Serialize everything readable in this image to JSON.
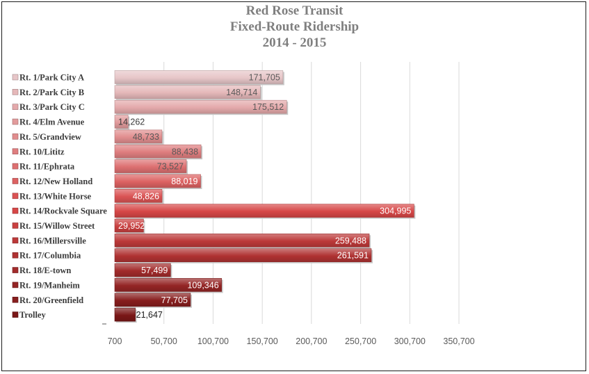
{
  "chart_data": {
    "type": "bar",
    "orientation": "horizontal",
    "title_lines": [
      "Red Rose Transit",
      "Fixed-Route Ridership",
      "2014 - 2015"
    ],
    "categories": [
      "Rt. 1/Park City A",
      "Rt. 2/Park City B",
      "Rt. 3/Park City C",
      "Rt. 4/Elm Avenue",
      "Rt. 5/Grandview",
      "Rt. 10/Lititz",
      "Rt. 11/Ephrata",
      "Rt. 12/New Holland",
      "Rt. 13/White Horse",
      "Rt. 14/Rockvale Square",
      "Rt. 15/Willow Street",
      "Rt. 16/Millersville",
      "Rt. 17/Columbia",
      "Rt. 18/E-town",
      "Rt. 19/Manheim",
      "Rt. 20/Greenfield",
      "Trolley"
    ],
    "values": [
      171705,
      148714,
      175512,
      14262,
      48733,
      88438,
      73527,
      88019,
      48826,
      304995,
      29952,
      259488,
      261591,
      57499,
      109346,
      77705,
      21647
    ],
    "value_labels": [
      "171,705",
      "148,714",
      "175,512",
      "14,262",
      "48,733",
      "88,438",
      "73,527",
      "88,019",
      "48,826",
      "304,995",
      "29,952",
      "259,488",
      "261,591",
      "57,499",
      "109,346",
      "77,705",
      "21,647"
    ],
    "xlim": [
      700,
      350700
    ],
    "x_ticks": [
      700,
      50700,
      100700,
      150700,
      200700,
      250700,
      300700,
      350700
    ],
    "x_tick_labels": [
      "700",
      "50,700",
      "100,700",
      "150,700",
      "200,700",
      "250,700",
      "300,700",
      "350,700"
    ],
    "grid": true,
    "colors": {
      "light": "#e7c6c8",
      "mid": "#d94848",
      "dark": "#7a1717",
      "gridline": "#d9d9d9"
    }
  }
}
